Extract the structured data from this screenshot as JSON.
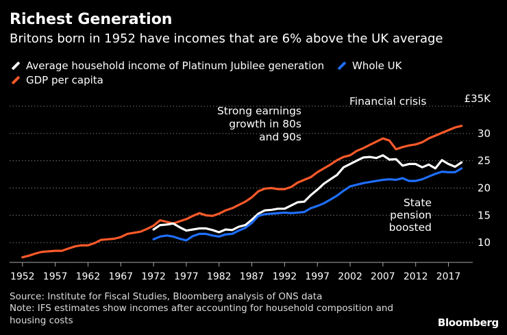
{
  "title": "Richest Generation",
  "subtitle": "Britons born in 1952 have incomes that are 6% above the UK average",
  "legend": {
    "generation": "Average household income of Platinum Jubilee generation",
    "whole_uk": "Whole UK",
    "gdp": "GDP per capita"
  },
  "colors": {
    "generation": "#ffffff",
    "whole_uk": "#1f6fff",
    "gdp": "#ff5a2a",
    "grid": "#777777"
  },
  "source": "Source: Institute for Fiscal Studies, Bloomberg analysis of ONS data",
  "note_line1": "Note: IFS estimates show incomes after accounting for household composition and",
  "note_line2": "housing costs",
  "brand": "Bloomberg",
  "chart_data": {
    "type": "line",
    "title": "Richest Generation",
    "xlabel": "",
    "ylabel": "",
    "xlim": [
      1951.5,
      2020.5
    ],
    "ylim": [
      7,
      35
    ],
    "x_ticks": [
      1952,
      1957,
      1962,
      1967,
      1972,
      1977,
      1982,
      1987,
      1992,
      1997,
      2002,
      2007,
      2012,
      2017
    ],
    "y_ticks": [
      {
        "value": 10,
        "label": "10"
      },
      {
        "value": 15,
        "label": "15"
      },
      {
        "value": 20,
        "label": "20"
      },
      {
        "value": 25,
        "label": "25"
      },
      {
        "value": 30,
        "label": "30"
      },
      {
        "value": 35,
        "label": "£35K"
      }
    ],
    "series": [
      {
        "key": "gdp",
        "name": "GDP per capita",
        "x": [
          1952,
          1953,
          1954,
          1955,
          1956,
          1957,
          1958,
          1959,
          1960,
          1961,
          1962,
          1963,
          1964,
          1965,
          1966,
          1967,
          1968,
          1969,
          1970,
          1971,
          1972,
          1973,
          1974,
          1975,
          1976,
          1977,
          1978,
          1979,
          1980,
          1981,
          1982,
          1983,
          1984,
          1985,
          1986,
          1987,
          1988,
          1989,
          1990,
          1991,
          1992,
          1993,
          1994,
          1995,
          1996,
          1997,
          1998,
          1999,
          2000,
          2001,
          2002,
          2003,
          2004,
          2005,
          2006,
          2007,
          2008,
          2009,
          2010,
          2011,
          2012,
          2013,
          2014,
          2015,
          2016,
          2017,
          2018,
          2019
        ],
        "values": [
          7.3,
          7.6,
          8.0,
          8.3,
          8.4,
          8.5,
          8.5,
          8.9,
          9.3,
          9.5,
          9.5,
          9.9,
          10.5,
          10.6,
          10.7,
          11.0,
          11.6,
          11.8,
          12.0,
          12.5,
          13.1,
          14.1,
          13.8,
          13.5,
          13.9,
          14.3,
          14.9,
          15.4,
          15.0,
          14.9,
          15.3,
          15.9,
          16.3,
          16.9,
          17.5,
          18.3,
          19.4,
          19.9,
          20.0,
          19.8,
          19.8,
          20.2,
          21.0,
          21.5,
          22.0,
          22.9,
          23.6,
          24.3,
          25.1,
          25.7,
          26.0,
          26.8,
          27.3,
          27.9,
          28.5,
          29.1,
          28.7,
          27.1,
          27.5,
          27.8,
          28.0,
          28.4,
          29.1,
          29.6,
          30.1,
          30.6,
          31.1,
          31.4
        ]
      },
      {
        "key": "generation",
        "name": "Average household income of Platinum Jubilee generation",
        "x": [
          1972,
          1973,
          1974,
          1975,
          1976,
          1977,
          1978,
          1979,
          1980,
          1981,
          1982,
          1983,
          1984,
          1985,
          1986,
          1987,
          1988,
          1989,
          1990,
          1991,
          1992,
          1993,
          1994,
          1995,
          1996,
          1997,
          1998,
          1999,
          2000,
          2001,
          2002,
          2003,
          2004,
          2005,
          2006,
          2007,
          2008,
          2009,
          2010,
          2011,
          2012,
          2013,
          2014,
          2015,
          2016,
          2017,
          2018,
          2019
        ],
        "values": [
          12.4,
          13.2,
          13.3,
          13.5,
          12.8,
          12.2,
          12.4,
          12.6,
          12.6,
          12.3,
          11.9,
          12.4,
          12.3,
          12.9,
          13.2,
          14.2,
          15.3,
          15.9,
          16.0,
          16.2,
          16.2,
          16.8,
          17.4,
          17.5,
          18.7,
          19.7,
          20.8,
          21.6,
          22.4,
          23.8,
          24.4,
          25.0,
          25.6,
          25.7,
          25.5,
          26.0,
          25.2,
          25.3,
          24.1,
          24.4,
          24.4,
          23.8,
          24.3,
          23.6,
          25.1,
          24.4,
          23.9,
          24.7
        ]
      },
      {
        "key": "whole_uk",
        "name": "Whole UK",
        "x": [
          1972,
          1973,
          1974,
          1975,
          1976,
          1977,
          1978,
          1979,
          1980,
          1981,
          1982,
          1983,
          1984,
          1985,
          1986,
          1987,
          1988,
          1989,
          1990,
          1991,
          1992,
          1993,
          1994,
          1995,
          1996,
          1997,
          1998,
          1999,
          2000,
          2001,
          2002,
          2003,
          2004,
          2005,
          2006,
          2007,
          2008,
          2009,
          2010,
          2011,
          2012,
          2013,
          2014,
          2015,
          2016,
          2017,
          2018,
          2019
        ],
        "values": [
          10.6,
          11.1,
          11.3,
          11.1,
          10.7,
          10.4,
          11.2,
          11.6,
          11.6,
          11.3,
          11.1,
          11.5,
          11.6,
          12.2,
          12.7,
          13.6,
          14.9,
          15.2,
          15.3,
          15.4,
          15.5,
          15.4,
          15.5,
          15.6,
          16.3,
          16.7,
          17.2,
          17.9,
          18.6,
          19.5,
          20.3,
          20.6,
          20.9,
          21.1,
          21.3,
          21.5,
          21.6,
          21.5,
          21.8,
          21.3,
          21.3,
          21.6,
          22.1,
          22.6,
          23.0,
          22.9,
          22.9,
          23.6
        ]
      }
    ],
    "annotations": [
      {
        "key": "earnings",
        "lines": [
          "Strong earnings",
          "growth in 80s",
          "and 90s"
        ]
      },
      {
        "key": "crisis",
        "lines": [
          "Financial crisis"
        ]
      },
      {
        "key": "pension",
        "lines": [
          "State",
          "pension",
          "boosted"
        ]
      }
    ]
  }
}
